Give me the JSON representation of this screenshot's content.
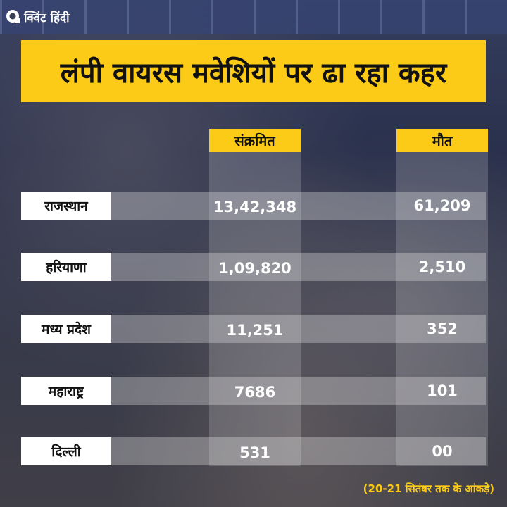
{
  "brand": {
    "logo_text": "क्विंट हिंदी"
  },
  "title": "लंपी वायरस मवेशियों पर ढा रहा कहर",
  "footnote": "(20-21 सितंबर तक के आंकड़े)",
  "colors": {
    "accent": "#fbcb18",
    "label_bg": "#ffffff",
    "value_text": "#ffffff"
  },
  "chart_data": {
    "type": "table",
    "columns": [
      "संक्रमित",
      "मौत"
    ],
    "rows": [
      {
        "state": "राजस्थान",
        "infected": "13,42,348",
        "deaths": "61,209"
      },
      {
        "state": "हरियाणा",
        "infected": "1,09,820",
        "deaths": "2,510"
      },
      {
        "state": "मध्य प्रदेश",
        "infected": "11,251",
        "deaths": "352"
      },
      {
        "state": "महाराष्ट्र",
        "infected": "7686",
        "deaths": "101"
      },
      {
        "state": "दिल्ली",
        "infected": "531",
        "deaths": "00"
      }
    ]
  }
}
